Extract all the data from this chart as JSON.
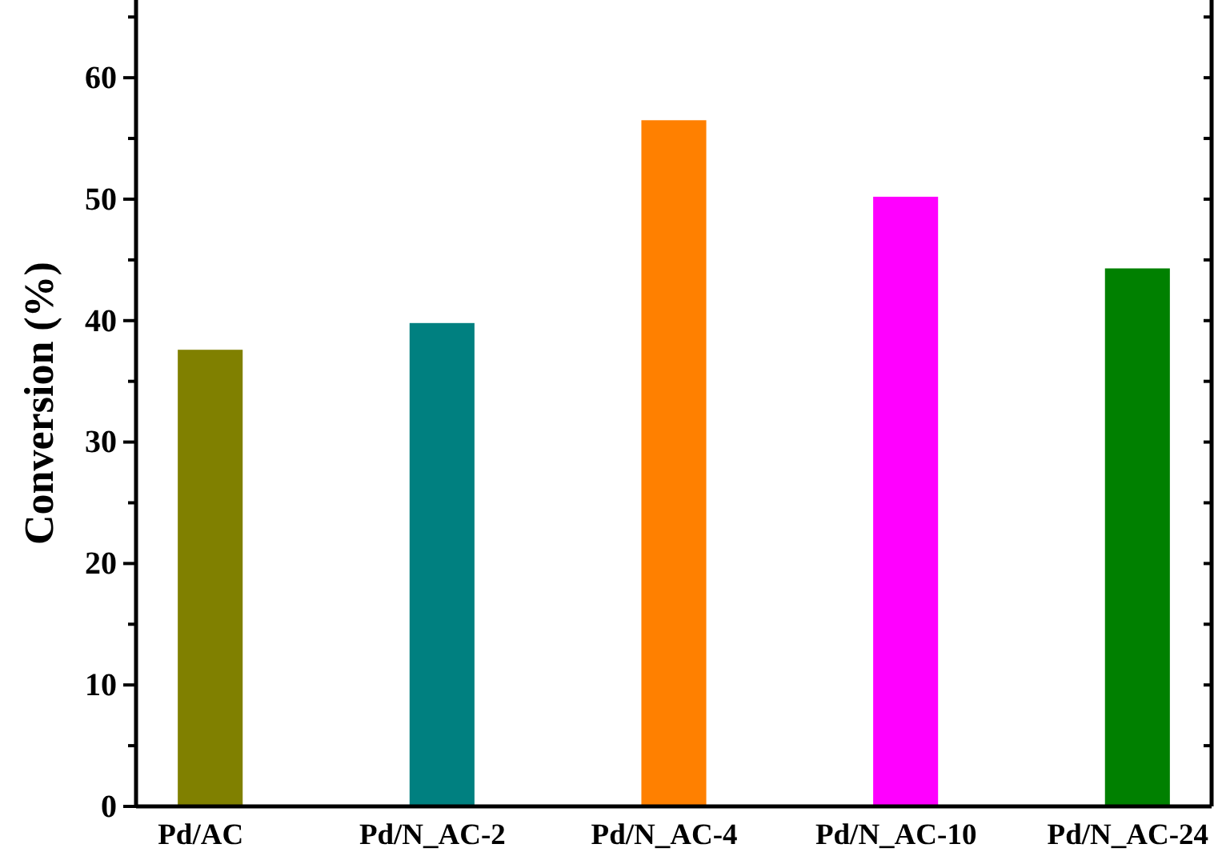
{
  "chart_data": {
    "type": "bar",
    "ylabel": "Conversion (%)",
    "categories": [
      "Pd/AC",
      "Pd/N_AC-2",
      "Pd/N_AC-4",
      "Pd/N_AC-10",
      "Pd/N_AC-24"
    ],
    "values": [
      37.6,
      39.8,
      56.5,
      50.2,
      44.3
    ],
    "colors": [
      "#808000",
      "#008080",
      "#ff8000",
      "#ff00ff",
      "#008000"
    ],
    "ylim": [
      0,
      66.4
    ],
    "yticks": [
      0,
      {
        "value": 5,
        "label": null
      },
      10,
      {
        "value": 15,
        "label": null
      },
      20,
      {
        "value": 25,
        "label": null
      },
      30,
      {
        "value": 35,
        "label": null
      },
      40,
      {
        "value": 45,
        "label": null
      },
      50,
      {
        "value": 55,
        "label": null
      },
      60,
      {
        "value": 65,
        "label": null
      }
    ],
    "grid": false
  }
}
